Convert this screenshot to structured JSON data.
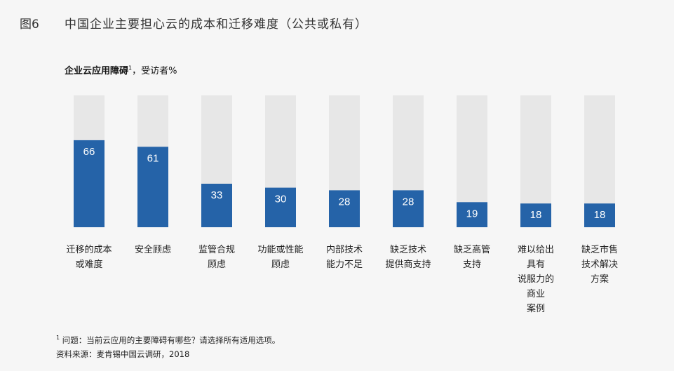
{
  "figure": {
    "label": "图6",
    "title": "中国企业主要担心云的成本和迁移难度（公共或私有）"
  },
  "subtitle": {
    "bold": "企业云应用障碍",
    "sup": "1",
    "rest": "，受访者%"
  },
  "footnote": {
    "sup": "1",
    "text": " 问题：当前云应用的主要障碍有哪些？请选择所有适用选项。"
  },
  "source": "资料来源：麦肯锡中国云调研，2018",
  "colors": {
    "bar": "#2563a8",
    "track": "#e7e7e7",
    "value_text": "#ffffff"
  },
  "chart_data": {
    "type": "bar",
    "ylim": [
      0,
      100
    ],
    "categories": [
      [
        "迁移的成本",
        "或难度"
      ],
      [
        "安全顾虑"
      ],
      [
        "监管合规",
        "顾虑"
      ],
      [
        "功能或性能",
        "顾虑"
      ],
      [
        "内部技术",
        "能力不足"
      ],
      [
        "缺乏技术",
        "提供商支持"
      ],
      [
        "缺乏高管",
        "支持"
      ],
      [
        "难以给出",
        "具有",
        "说服力的",
        "商业",
        "案例"
      ],
      [
        "缺乏市售",
        "技术解决",
        "方案"
      ]
    ],
    "values": [
      66,
      61,
      33,
      30,
      28,
      28,
      19,
      18,
      18
    ]
  }
}
